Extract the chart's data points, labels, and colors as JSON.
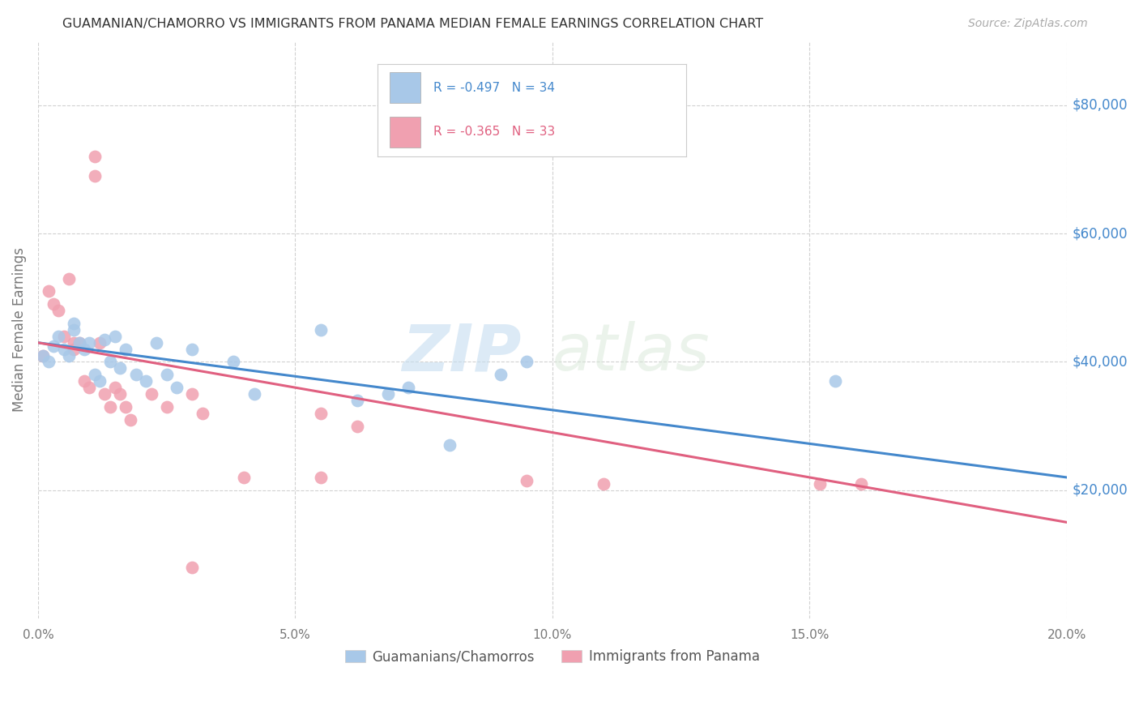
{
  "title": "GUAMANIAN/CHAMORRO VS IMMIGRANTS FROM PANAMA MEDIAN FEMALE EARNINGS CORRELATION CHART",
  "source": "Source: ZipAtlas.com",
  "ylabel": "Median Female Earnings",
  "xlim": [
    0,
    0.2
  ],
  "ylim": [
    0,
    90000
  ],
  "xtick_labels": [
    "0.0%",
    "5.0%",
    "10.0%",
    "15.0%",
    "20.0%"
  ],
  "xtick_vals": [
    0.0,
    0.05,
    0.1,
    0.15,
    0.2
  ],
  "ytick_labels": [
    "$20,000",
    "$40,000",
    "$60,000",
    "$80,000"
  ],
  "ytick_vals": [
    20000,
    40000,
    60000,
    80000
  ],
  "blue_R": "-0.497",
  "blue_N": "34",
  "pink_R": "-0.365",
  "pink_N": "33",
  "legend_labels": [
    "Guamanians/Chamorros",
    "Immigrants from Panama"
  ],
  "blue_color": "#a8c8e8",
  "pink_color": "#f0a0b0",
  "blue_line_color": "#4488cc",
  "pink_line_color": "#e06080",
  "background_color": "#ffffff",
  "grid_color": "#cccccc",
  "watermark_zip": "ZIP",
  "watermark_atlas": "atlas",
  "blue_x": [
    0.001,
    0.002,
    0.003,
    0.004,
    0.005,
    0.006,
    0.007,
    0.007,
    0.008,
    0.009,
    0.01,
    0.011,
    0.012,
    0.013,
    0.014,
    0.015,
    0.016,
    0.017,
    0.019,
    0.021,
    0.023,
    0.025,
    0.027,
    0.03,
    0.038,
    0.042,
    0.055,
    0.062,
    0.068,
    0.072,
    0.08,
    0.09,
    0.095,
    0.155
  ],
  "blue_y": [
    41000,
    40000,
    42500,
    44000,
    42000,
    41000,
    46000,
    45000,
    43000,
    42000,
    43000,
    38000,
    37000,
    43500,
    40000,
    44000,
    39000,
    42000,
    38000,
    37000,
    43000,
    38000,
    36000,
    42000,
    40000,
    35000,
    45000,
    34000,
    35000,
    36000,
    27000,
    38000,
    40000,
    37000
  ],
  "pink_x": [
    0.001,
    0.002,
    0.003,
    0.004,
    0.005,
    0.006,
    0.007,
    0.007,
    0.008,
    0.009,
    0.01,
    0.011,
    0.011,
    0.012,
    0.013,
    0.014,
    0.015,
    0.016,
    0.017,
    0.018,
    0.022,
    0.025,
    0.03,
    0.032,
    0.04,
    0.055,
    0.062,
    0.095,
    0.11,
    0.152,
    0.16,
    0.055,
    0.03
  ],
  "pink_y": [
    41000,
    51000,
    49000,
    48000,
    44000,
    53000,
    43000,
    42000,
    43000,
    37000,
    36000,
    69000,
    72000,
    43000,
    35000,
    33000,
    36000,
    35000,
    33000,
    31000,
    35000,
    33000,
    35000,
    32000,
    22000,
    32000,
    30000,
    21500,
    21000,
    21000,
    21000,
    22000,
    8000
  ],
  "blue_line_x": [
    0.0,
    0.2
  ],
  "blue_line_y": [
    43000,
    22000
  ],
  "pink_line_x": [
    0.0,
    0.2
  ],
  "pink_line_y": [
    43000,
    15000
  ]
}
